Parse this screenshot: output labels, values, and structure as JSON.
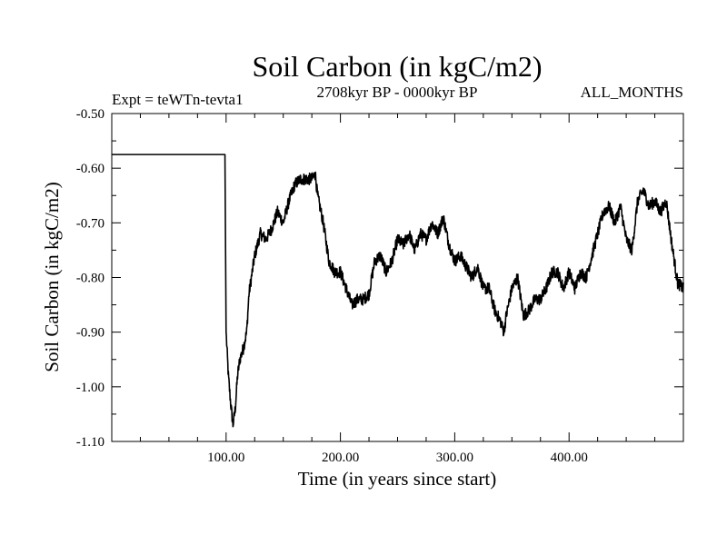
{
  "chart_data": {
    "type": "line",
    "title": "Soil Carbon (in kgC/m2)",
    "subtitle_left": "Expt = teWTn-tevta1",
    "subtitle_center": "2708kyr BP - 0000kyr BP",
    "subtitle_right": "ALL_MONTHS",
    "xlabel": "Time (in years since start)",
    "ylabel": "Soil Carbon (in kgC/m2)",
    "xlim": [
      0,
      500
    ],
    "ylim": [
      -1.1,
      -0.5
    ],
    "x_ticks": [
      100,
      200,
      300,
      400
    ],
    "x_tick_labels": [
      "100.00",
      "200.00",
      "300.00",
      "400.00"
    ],
    "y_ticks": [
      -0.5,
      -0.6,
      -0.7,
      -0.8,
      -0.9,
      -1.0,
      -1.1
    ],
    "y_tick_labels": [
      "-0.50",
      "-0.60",
      "-0.70",
      "-0.80",
      "-0.90",
      "-1.00",
      "-1.10"
    ],
    "series": [
      {
        "name": "Soil Carbon",
        "color": "#000000",
        "x": [
          0,
          99,
          100,
          102,
          104,
          106,
          108,
          110,
          112,
          115,
          118,
          120,
          125,
          130,
          135,
          140,
          145,
          150,
          155,
          160,
          165,
          170,
          175,
          178,
          180,
          185,
          190,
          195,
          200,
          205,
          210,
          215,
          220,
          225,
          230,
          235,
          240,
          245,
          250,
          255,
          260,
          265,
          270,
          275,
          280,
          285,
          290,
          295,
          300,
          305,
          310,
          315,
          320,
          325,
          330,
          335,
          340,
          343,
          345,
          350,
          355,
          360,
          365,
          370,
          375,
          380,
          385,
          390,
          395,
          400,
          405,
          410,
          415,
          420,
          425,
          430,
          435,
          440,
          445,
          450,
          455,
          460,
          465,
          470,
          475,
          480,
          485,
          490,
          495,
          500
        ],
        "values": [
          -0.575,
          -0.575,
          -0.9,
          -0.98,
          -1.03,
          -1.07,
          -1.04,
          -0.98,
          -0.95,
          -0.93,
          -0.9,
          -0.83,
          -0.76,
          -0.72,
          -0.73,
          -0.71,
          -0.68,
          -0.7,
          -0.66,
          -0.63,
          -0.62,
          -0.62,
          -0.62,
          -0.61,
          -0.65,
          -0.7,
          -0.77,
          -0.79,
          -0.79,
          -0.82,
          -0.85,
          -0.84,
          -0.84,
          -0.83,
          -0.77,
          -0.76,
          -0.79,
          -0.77,
          -0.73,
          -0.74,
          -0.72,
          -0.75,
          -0.72,
          -0.73,
          -0.7,
          -0.72,
          -0.69,
          -0.74,
          -0.77,
          -0.76,
          -0.78,
          -0.8,
          -0.78,
          -0.82,
          -0.82,
          -0.86,
          -0.88,
          -0.9,
          -0.87,
          -0.82,
          -0.8,
          -0.87,
          -0.86,
          -0.84,
          -0.84,
          -0.82,
          -0.79,
          -0.79,
          -0.82,
          -0.79,
          -0.82,
          -0.79,
          -0.8,
          -0.76,
          -0.72,
          -0.68,
          -0.67,
          -0.7,
          -0.67,
          -0.73,
          -0.75,
          -0.66,
          -0.64,
          -0.67,
          -0.66,
          -0.68,
          -0.66,
          -0.74,
          -0.81,
          -0.82
        ]
      }
    ]
  }
}
